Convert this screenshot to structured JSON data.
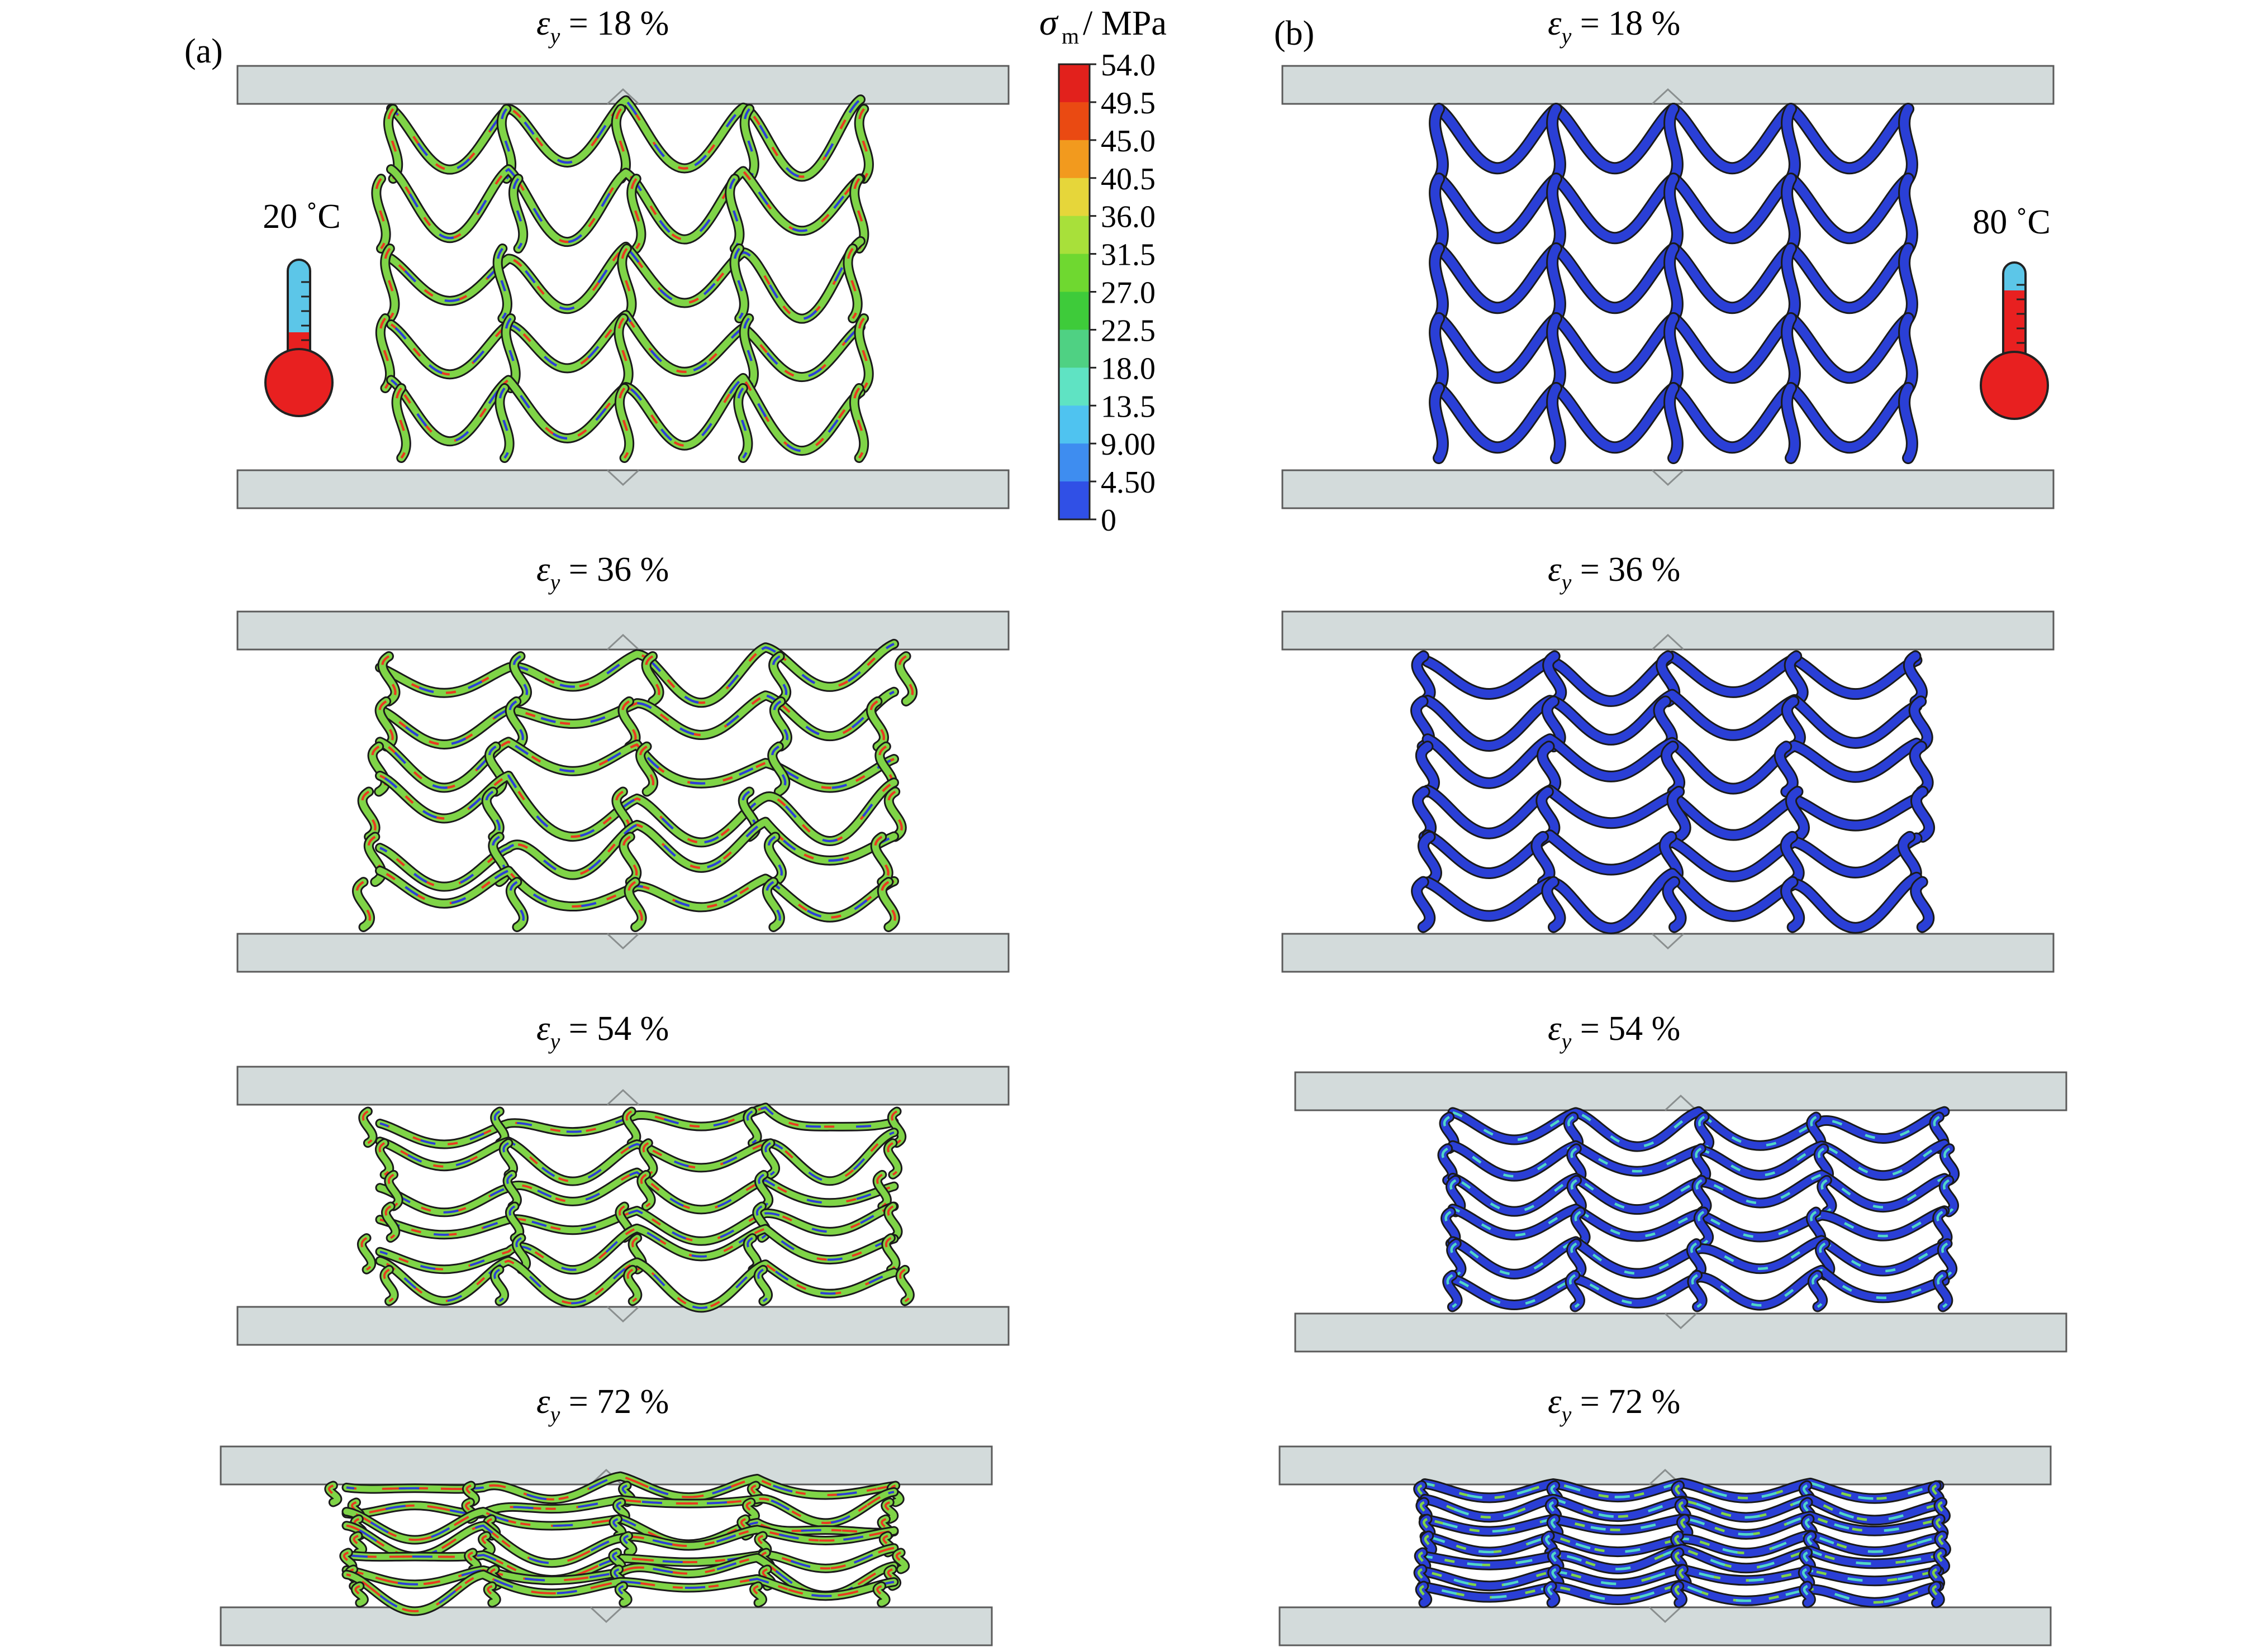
{
  "panels": [
    {
      "label": "(a)",
      "temperature": "20 ˚C",
      "thermometer": "cold"
    },
    {
      "label": "(b)",
      "temperature": "80 ˚C",
      "thermometer": "hot"
    }
  ],
  "strain_symbol": "ε",
  "strain_subscript": "y",
  "strain_values": [
    "18 %",
    "36 %",
    "54 %",
    "72 %"
  ],
  "colorbar": {
    "symbol": "σ",
    "subscript": "m",
    "unit": " / MPa",
    "ticks": [
      "54.0",
      "49.5",
      "45.0",
      "40.5",
      "36.0",
      "31.5",
      "27.0",
      "22.5",
      "18.0",
      "13.5",
      "9.00",
      "4.50",
      "0"
    ],
    "colors": [
      "#e2211c",
      "#ea4a12",
      "#f29a1e",
      "#e6d63a",
      "#a8e03a",
      "#6fd830",
      "#3ecb3a",
      "#4fd183",
      "#5fe3c3",
      "#4fc3f0",
      "#3e8df0",
      "#3050e6"
    ]
  },
  "colors": {
    "plate_fill": "#d3dbdb",
    "plate_stroke": "#5b5b5b",
    "lattice_blue": "#2a3fd6",
    "lattice_green": "#7fd447",
    "lattice_red": "#e83a1f",
    "lattice_cyan": "#4fd6c8",
    "thermo_cold": "#5cc6e8",
    "thermo_hot": "#e82020"
  }
}
